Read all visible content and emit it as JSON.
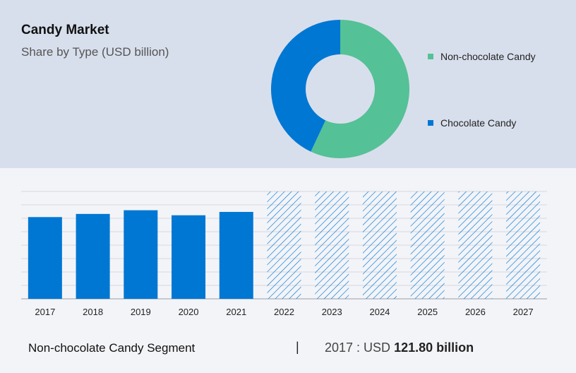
{
  "header": {
    "title": "Candy Market",
    "subtitle": "Share by Type (USD billion)"
  },
  "colors": {
    "non_chocolate": "#55c196",
    "chocolate": "#0077d3",
    "forecast_hatch": "#0077d3"
  },
  "chart_data": [
    {
      "type": "pie",
      "variant": "donut",
      "title": "Share by Type (USD billion)",
      "labels": [
        "Non-chocolate Candy",
        "Chocolate Candy"
      ],
      "values": [
        57,
        43
      ],
      "legend_position": "right"
    },
    {
      "type": "bar",
      "categories": [
        "2017",
        "2018",
        "2019",
        "2020",
        "2021",
        "2022",
        "2023",
        "2024",
        "2025",
        "2026",
        "2027"
      ],
      "values": [
        121.8,
        126.5,
        132.0,
        124.5,
        129.5,
        null,
        null,
        null,
        null,
        null,
        null
      ],
      "forecast_years": [
        "2022",
        "2023",
        "2024",
        "2025",
        "2026",
        "2027"
      ],
      "ylim": [
        0,
        160
      ],
      "grid": true
    }
  ],
  "footer": {
    "segment_label": "Non-chocolate Candy Segment",
    "separator": "|",
    "value_prefix": "2017 : USD",
    "value": "121.80 billion"
  }
}
